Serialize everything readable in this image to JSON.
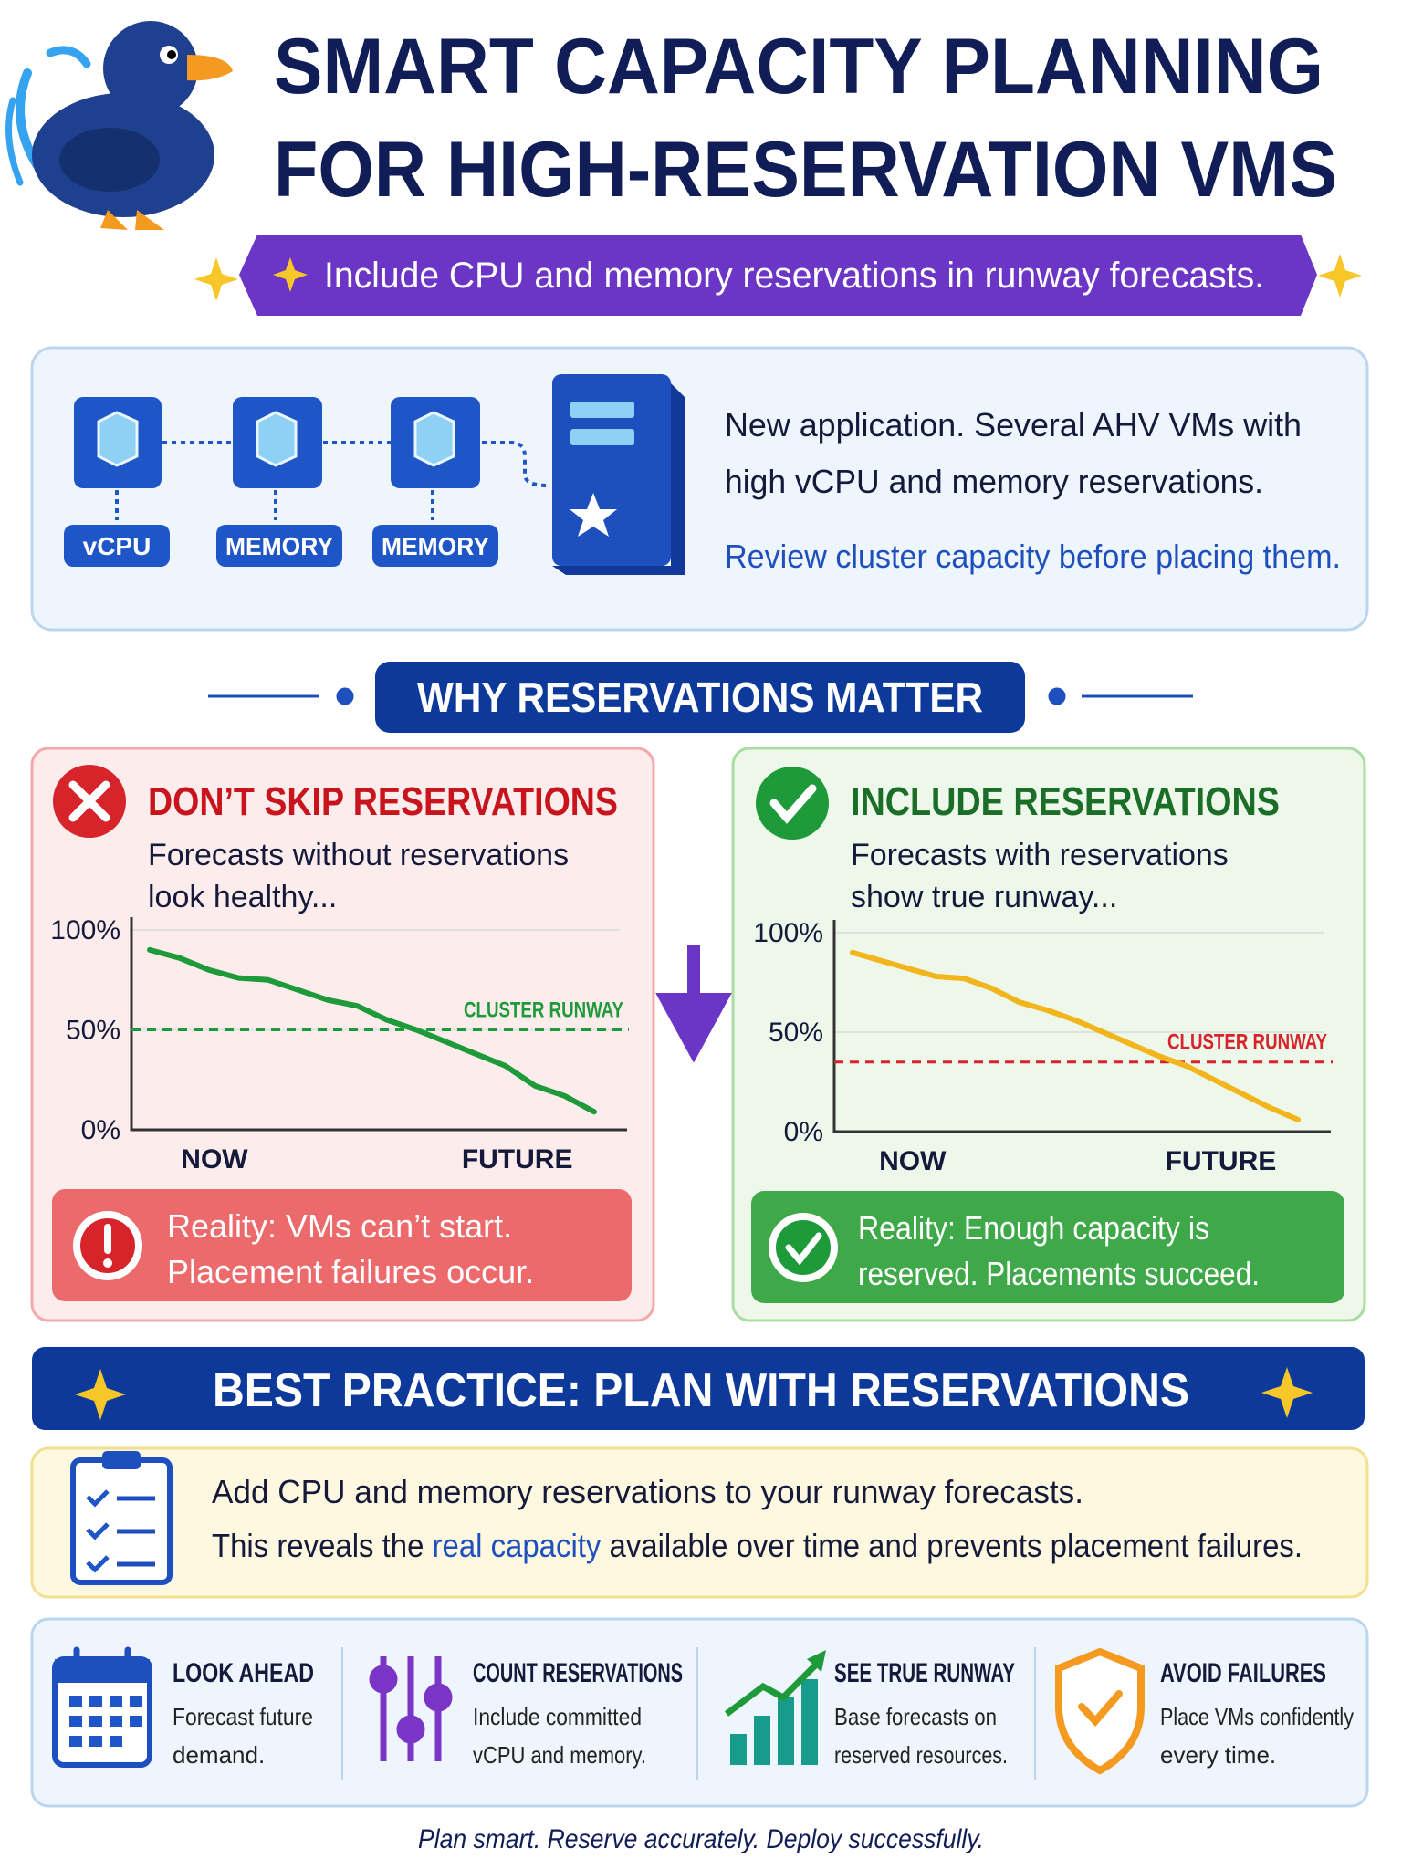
{
  "header": {
    "title_lines": [
      "SMART CAPACITY PLANNING",
      "FOR HIGH-RESERVATION VMS"
    ],
    "tagline": "Include CPU and memory reservations in runway forecasts."
  },
  "scenario": {
    "labels": [
      "vCPU",
      "MEMORY",
      "MEMORY"
    ],
    "lines": [
      "New application. Several AHV VMs with",
      "high vCPU and memory reservations."
    ],
    "note": "Review cluster capacity before placing them."
  },
  "section_title": "WHY RESERVATIONS MATTER",
  "panels": [
    {
      "title": "DON’T SKIP RESERVATIONS",
      "subtitle_lines": [
        "Forecasts without reservations",
        "look healthy..."
      ],
      "chart_data": {
        "type": "line",
        "x_labels": [
          "NOW",
          "FUTURE"
        ],
        "series": [
          {
            "color": "#1e9a3a",
            "values": [
              90,
              86,
              80,
              76,
              75,
              70,
              65,
              62,
              55,
              50,
              44,
              38,
              32,
              22,
              17,
              9
            ]
          }
        ],
        "ylim": [
          0,
          100
        ],
        "yticks": [
          {
            "value": 0,
            "label": "0%"
          },
          {
            "value": 50,
            "label": "50%"
          },
          {
            "value": 100,
            "label": "100%"
          }
        ],
        "grid": true,
        "reference_line": {
          "value": 50,
          "label": "CLUSTER RUNWAY",
          "color": "#1e9a3a"
        }
      },
      "reality_lines": [
        "Reality: VMs can’t start.",
        "Placement failures occur."
      ]
    },
    {
      "title": "INCLUDE RESERVATIONS",
      "subtitle_lines": [
        "Forecasts with reservations",
        "show true runway..."
      ],
      "chart_data": {
        "type": "line",
        "x_labels": [
          "NOW",
          "FUTURE"
        ],
        "series": [
          {
            "color": "#f2b51c",
            "values": [
              90,
              86,
              82,
              78,
              77,
              72,
              65,
              61,
              56,
              50,
              44,
              38,
              33,
              26,
              19,
              12,
              6
            ]
          }
        ],
        "ylim": [
          0,
          100
        ],
        "yticks": [
          {
            "value": 0,
            "label": "0%"
          },
          {
            "value": 50,
            "label": "50%"
          },
          {
            "value": 100,
            "label": "100%"
          }
        ],
        "grid": true,
        "reference_line": {
          "value": 35,
          "label": "CLUSTER RUNWAY",
          "color": "#d7242b"
        }
      },
      "reality_lines": [
        "Reality: Enough capacity is",
        "reserved. Placements succeed."
      ]
    }
  ],
  "best_practice": {
    "title": "BEST PRACTICE: PLAN WITH RESERVATIONS",
    "line1": "Add CPU and memory reservations to your runway forecasts.",
    "line2_parts": [
      "This reveals the ",
      "real capacity",
      " available over time and prevents placement failures."
    ]
  },
  "tips": [
    {
      "title": "LOOK AHEAD",
      "lines": [
        "Forecast future",
        "demand."
      ]
    },
    {
      "title": "COUNT RESERVATIONS",
      "lines": [
        "Include committed",
        "vCPU and memory."
      ]
    },
    {
      "title": "SEE TRUE RUNWAY",
      "lines": [
        "Base forecasts on",
        "reserved resources."
      ]
    },
    {
      "title": "AVOID FAILURES",
      "lines": [
        "Place VMs confidently",
        "every time."
      ]
    }
  ],
  "footer": "Plan smart. Reserve accurately. Deploy successfully."
}
